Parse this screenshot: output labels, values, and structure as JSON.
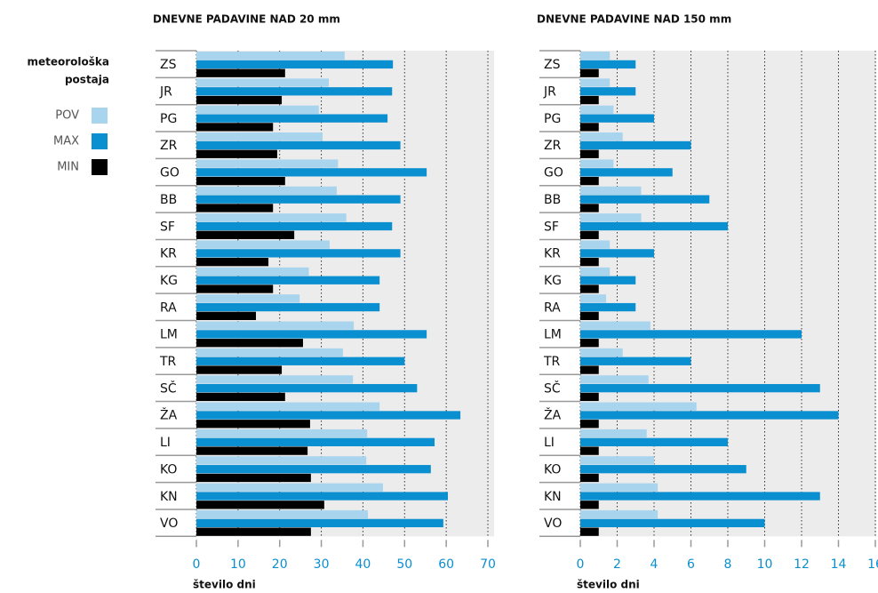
{
  "legend_title": [
    "meteorološka",
    "postaja"
  ],
  "chart_data": [
    {
      "type": "hbar",
      "title": "DNEVNE PADAVINE NAD 20 mm",
      "x_label": "število dni",
      "categories": [
        "ZS",
        "JR",
        "PG",
        "ZR",
        "GO",
        "BB",
        "SF",
        "KR",
        "KG",
        "RA",
        "LM",
        "TR",
        "SČ",
        "ŽA",
        "LI",
        "KO",
        "KN",
        "VO"
      ],
      "series": [
        {
          "name": "POV",
          "color": "#a8d4ee",
          "values": [
            35.6,
            31.8,
            29.4,
            30.3,
            34,
            33.7,
            36,
            32,
            27,
            24.8,
            37.8,
            35.2,
            37.6,
            44,
            41,
            40.8,
            44.8,
            41.2
          ]
        },
        {
          "name": "MAX",
          "color": "#0a8fd0",
          "values": [
            47.2,
            47,
            45.9,
            49,
            55.3,
            49,
            47,
            49,
            44,
            44,
            55.3,
            50,
            53,
            63.4,
            57.2,
            56.3,
            60.4,
            59.3
          ]
        },
        {
          "name": "MIN",
          "color": "#000000",
          "values": [
            21.3,
            20.5,
            18.4,
            19.4,
            21.3,
            18.4,
            23.5,
            17.3,
            18.4,
            14.3,
            25.6,
            20.5,
            21.3,
            27.3,
            26.7,
            27.5,
            30.7,
            27.5
          ]
        }
      ],
      "xlim": [
        0,
        70
      ],
      "xticks": [
        0,
        10,
        20,
        30,
        40,
        50,
        60,
        70
      ],
      "grid": true
    },
    {
      "type": "hbar",
      "title": "DNEVNE PADAVINE NAD 150 mm",
      "x_label": "število dni",
      "categories": [
        "ZS",
        "JR",
        "PG",
        "ZR",
        "GO",
        "BB",
        "SF",
        "KR",
        "KG",
        "RA",
        "LM",
        "TR",
        "SČ",
        "ŽA",
        "LI",
        "KO",
        "KN",
        "VO"
      ],
      "series": [
        {
          "name": "POV",
          "color": "#a8d4ee",
          "values": [
            1.6,
            1.6,
            1.8,
            2.3,
            1.8,
            3.3,
            3.3,
            1.6,
            1.6,
            1.4,
            3.8,
            2.3,
            3.7,
            6.3,
            3.6,
            4,
            4.2,
            4.2
          ]
        },
        {
          "name": "MAX",
          "color": "#0a8fd0",
          "values": [
            3,
            3,
            4,
            6,
            5,
            7,
            8,
            4,
            3,
            3,
            12,
            6,
            13,
            14,
            8,
            9,
            13,
            10
          ]
        },
        {
          "name": "MIN",
          "color": "#000000",
          "values": [
            1,
            1,
            1,
            1,
            1,
            1,
            1,
            1,
            1,
            1,
            1,
            1,
            1,
            1,
            1,
            1,
            1,
            1
          ]
        }
      ],
      "xlim": [
        0,
        16
      ],
      "xticks": [
        0,
        2,
        4,
        6,
        8,
        10,
        12,
        14,
        16
      ],
      "grid": true
    }
  ]
}
